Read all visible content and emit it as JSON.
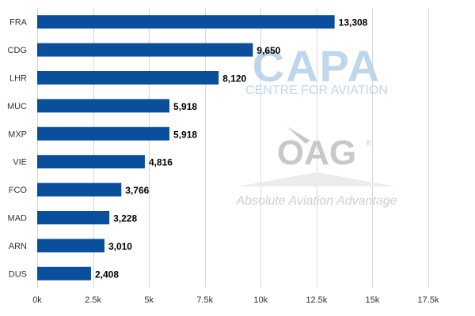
{
  "chart_data": {
    "type": "bar",
    "orientation": "horizontal",
    "categories": [
      "FRA",
      "CDG",
      "LHR",
      "MUC",
      "MXP",
      "VIE",
      "FCO",
      "MAD",
      "ARN",
      "DUS"
    ],
    "values": [
      13308,
      9650,
      8120,
      5918,
      5918,
      4816,
      3766,
      3228,
      3010,
      2408
    ],
    "value_labels": [
      "13,308",
      "9,650",
      "8,120",
      "5,918",
      "5,918",
      "4,816",
      "3,766",
      "3,228",
      "3,010",
      "2,408"
    ],
    "xticks": [
      0,
      2500,
      5000,
      7500,
      10000,
      12500,
      15000,
      17500
    ],
    "xtick_labels": [
      "0k",
      "2.5k",
      "5k",
      "7.5k",
      "10k",
      "12.5k",
      "15k",
      "17.5k"
    ],
    "xlim": [
      0,
      17500
    ],
    "grid": true,
    "legend": "none",
    "title": "",
    "xlabel": "",
    "ylabel": ""
  },
  "watermarks": {
    "capa_main": "CAPA",
    "capa_sub": "CENTRE FOR AVIATION",
    "oag_main": "OAG",
    "oag_registered": "®",
    "oag_tagline": "Absolute Aviation Advantage"
  },
  "colors": {
    "bar": "#0a4f9c",
    "capa_logo": "#b9d3ea",
    "oag_logo": "#c8c8c8",
    "grid": "#d8d8d8"
  }
}
